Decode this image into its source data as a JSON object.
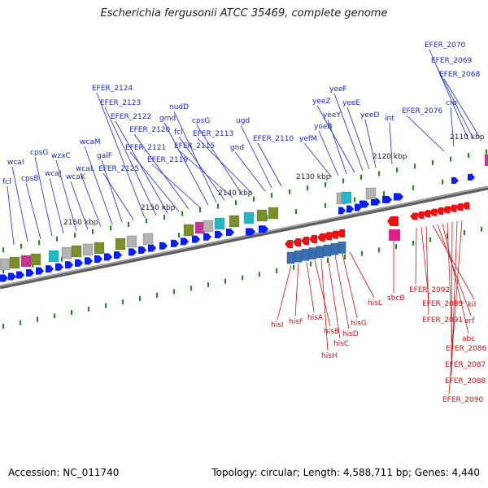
{
  "title": "Escherichia fergusonii ATCC 35469, complete genome",
  "footer": {
    "accession": "Accession: NC_011740",
    "stats": "Topology: circular; Length: 4,588,711 bp; Genes: 4,440"
  },
  "colors": {
    "forward_gene": "#0a1ef0",
    "reverse_gene": "#f01010",
    "forward_label": "#1a2acc",
    "reverse_label": "#cc1515",
    "tick": "#1e8a1e",
    "backbone": "#808080"
  },
  "scale_labels": [
    "2160 kbp",
    "2150 kbp",
    "2140 kbp",
    "2130 kbp",
    "2120 kbp",
    "2110 kbp"
  ],
  "forward_labels": [
    "fcl",
    "wcaI",
    "cpsB",
    "cpsG",
    "wcaJ",
    "wzxC",
    "wcaK",
    "wcaL",
    "wcaM",
    "galF",
    "EFER_2125",
    "EFER_2124",
    "EFER_2123",
    "EFER_2122",
    "EFER_2121",
    "EFER_2120",
    "EFER_2119",
    "gmd",
    "nudD",
    "fcl",
    "EFER_2115",
    "cpsG",
    "EFER_2113",
    "gnd",
    "ugd",
    "EFER_2110",
    "yefM",
    "yoeB",
    "yeeY",
    "yeeZ",
    "yeeF",
    "yeeE",
    "yeeD",
    "int",
    "EFER_2076",
    "cro",
    "EFER_2070",
    "EFER_2069",
    "EFER_2068"
  ],
  "reverse_labels": [
    "hisI",
    "hisF",
    "hisA",
    "hisB",
    "hisH",
    "hisC",
    "hisD",
    "hisG",
    "hisL",
    "sbcB",
    "EFER_2092",
    "EFER_2089",
    "EFER_2091",
    "kil",
    "erf",
    "abc",
    "EFER_2086",
    "EFER_2087",
    "EFER_2088",
    "EFER_2090"
  ]
}
